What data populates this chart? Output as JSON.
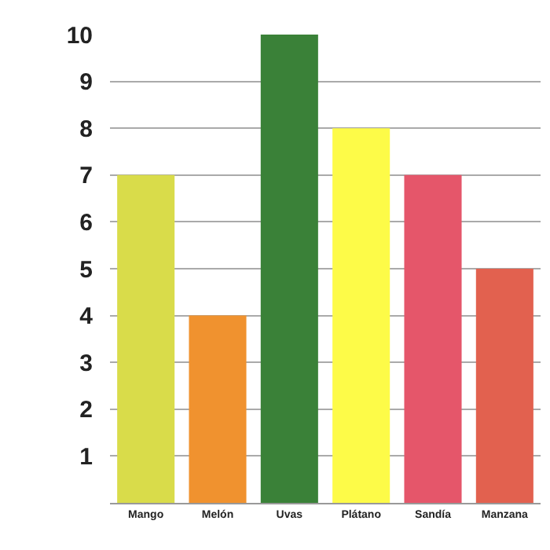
{
  "chart_data": {
    "type": "bar",
    "categories": [
      "Mango",
      "Melón",
      "Uvas",
      "Plátano",
      "Sandía",
      "Manzana"
    ],
    "values": [
      7,
      4,
      10,
      8,
      7,
      5
    ],
    "colors": [
      "#d9dc4a",
      "#f0922f",
      "#3a8138",
      "#fdfb48",
      "#e5566a",
      "#e2614f"
    ],
    "ylim": [
      0,
      10
    ],
    "yticks": [
      1,
      2,
      3,
      4,
      5,
      6,
      7,
      8,
      9,
      10
    ],
    "grid": "y"
  }
}
